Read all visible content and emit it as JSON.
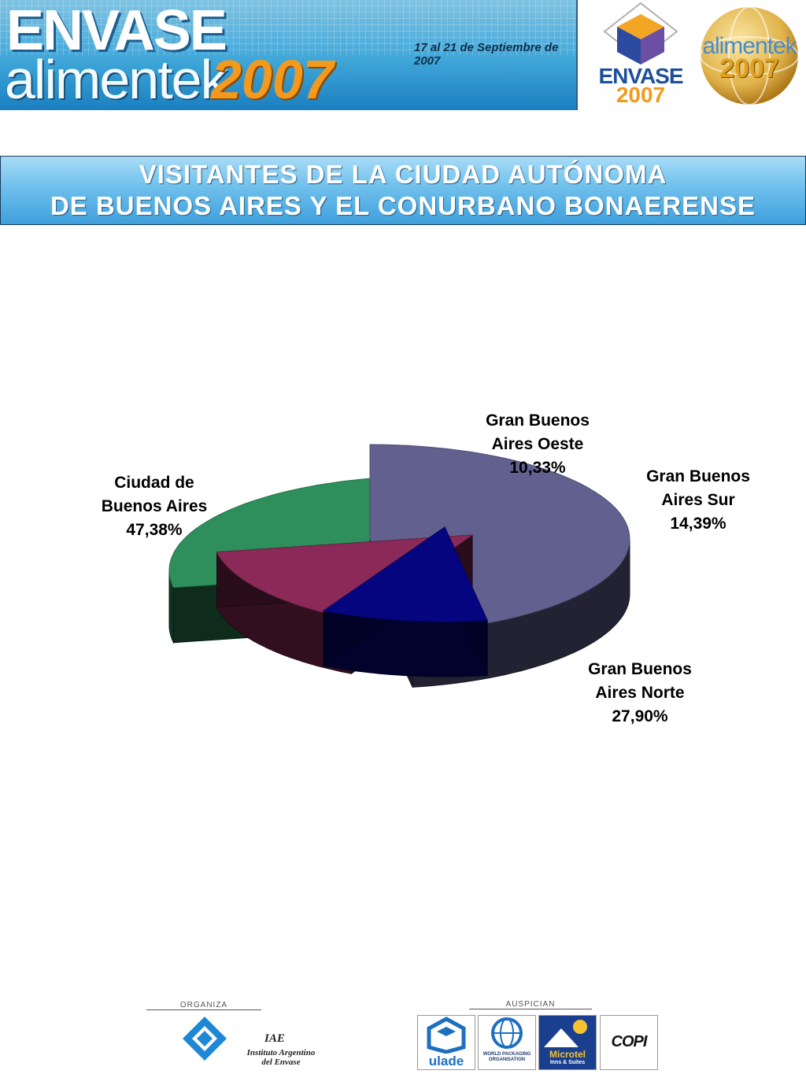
{
  "header": {
    "banner_top": "ENVASE",
    "banner_bottom": "alimentek",
    "banner_year": "2007",
    "banner_dates": "17 al 21 de Septiembre de 2007",
    "logo_envase_text": "ENVASE",
    "logo_envase_year": "2007",
    "logo_alimentek_text": "alimentek",
    "logo_alimentek_year": "2007"
  },
  "title": {
    "line1": "VISITANTES DE LA CIUDAD AUTÓNOMA",
    "line2": "DE BUENOS AIRES Y EL CONURBANO BONAERENSE"
  },
  "chart_data": {
    "type": "pie",
    "style": "3d-exploded",
    "title": "",
    "slices": [
      {
        "name": "Ciudad de Buenos Aires",
        "label_lines": [
          "Ciudad de",
          "Buenos Aires",
          "47,38%"
        ],
        "value": 47.38,
        "color": "#62608f"
      },
      {
        "name": "Gran Buenos Aires Oeste",
        "label_lines": [
          "Gran Buenos",
          "Aires Oeste",
          "10,33%"
        ],
        "value": 10.33,
        "color": "#050580"
      },
      {
        "name": "Gran Buenos Aires Sur",
        "label_lines": [
          "Gran Buenos",
          "Aires Sur",
          "14,39%"
        ],
        "value": 14.39,
        "color": "#8b2a58"
      },
      {
        "name": "Gran Buenos Aires Norte",
        "label_lines": [
          "Gran Buenos",
          "Aires Norte",
          "27,90%"
        ],
        "value": 27.9,
        "color": "#2e8f5c"
      }
    ]
  },
  "footer": {
    "organiza": "ORGANIZA",
    "auspician": "AUSPICIAN",
    "iae_abbr": "IAE",
    "iae_name_line1": "Instituto Argentino",
    "iae_name_line2": "del Envase",
    "sponsor_ulade": "ulade",
    "sponsor_wpo": "WORLD PACKAGING ORGANISATION",
    "sponsor_microtel": "Microtel",
    "sponsor_microtel_sub": "Inns & Suites",
    "sponsor_copi": "COPI"
  }
}
